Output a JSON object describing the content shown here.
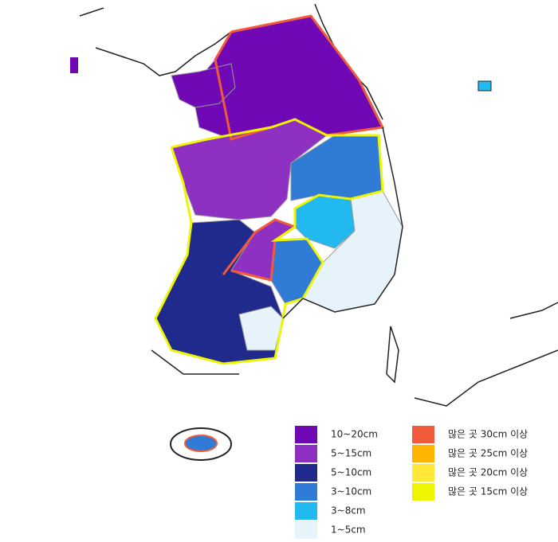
{
  "legend": {
    "amounts": [
      {
        "label": "10~20cm",
        "color": "#7009b5"
      },
      {
        "label": "5~15cm",
        "color": "#8e30c2"
      },
      {
        "label": "5~10cm",
        "color": "#1f2a8c"
      },
      {
        "label": "3~10cm",
        "color": "#2f7bd6"
      },
      {
        "label": "3~8cm",
        "color": "#22b8f0"
      },
      {
        "label": "1~5cm",
        "color": "#e6f3fb"
      }
    ],
    "max_areas": [
      {
        "label": "많은 곳 30cm 이상",
        "color": "#f25a3c"
      },
      {
        "label": "많은 곳 25cm 이상",
        "color": "#ffb400"
      },
      {
        "label": "많은 곳 20cm 이상",
        "color": "#ffe838"
      },
      {
        "label": "많은 곳 15cm 이상",
        "color": "#eef500"
      }
    ]
  }
}
